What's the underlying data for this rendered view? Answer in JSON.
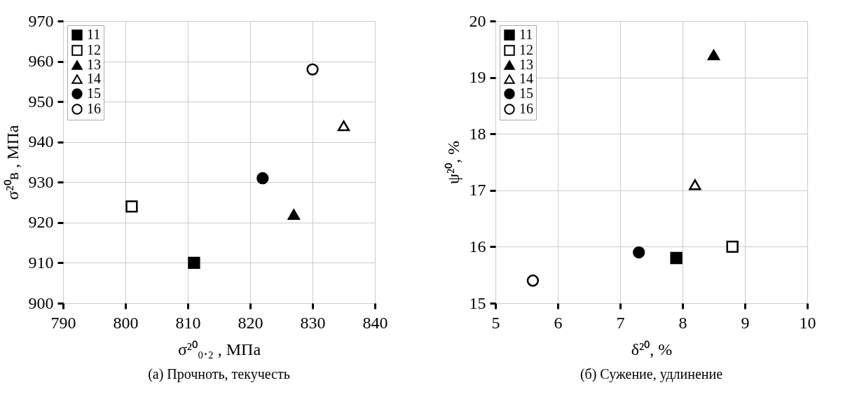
{
  "chart_data": [
    {
      "type": "scatter",
      "title": "(a) Прочноть, текучесть",
      "xlabel": "σ²⁰₀.₂ , МПа",
      "ylabel": "σ²⁰в , МПа",
      "xlim": [
        790,
        840
      ],
      "xticks": [
        790,
        800,
        810,
        820,
        830,
        840
      ],
      "ylim": [
        900,
        970
      ],
      "yticks": [
        900,
        910,
        920,
        930,
        940,
        950,
        960,
        970
      ],
      "grid": true,
      "legend": "top left",
      "series": [
        {
          "name": "11",
          "color": "#000000",
          "marker": "square",
          "x": [
            811
          ],
          "values": [
            910
          ]
        },
        {
          "name": "12",
          "color": "#000000",
          "marker": "square-open",
          "x": [
            801
          ],
          "values": [
            924
          ]
        },
        {
          "name": "13",
          "color": "#000000",
          "marker": "triangle",
          "x": [
            827
          ],
          "values": [
            922
          ]
        },
        {
          "name": "14",
          "color": "#000000",
          "marker": "triangle-open",
          "x": [
            835
          ],
          "values": [
            944
          ]
        },
        {
          "name": "15",
          "color": "#000000",
          "marker": "circle",
          "x": [
            822
          ],
          "values": [
            931
          ]
        },
        {
          "name": "16",
          "color": "#000000",
          "marker": "circle-open",
          "x": [
            830
          ],
          "values": [
            958
          ]
        }
      ]
    },
    {
      "type": "scatter",
      "title": "(б) Сужение, удлинение",
      "xlabel": "δ²⁰, %",
      "ylabel": "ψ²⁰, %",
      "xlim": [
        5,
        10
      ],
      "xticks": [
        5,
        6,
        7,
        8,
        9,
        10
      ],
      "ylim": [
        15,
        20
      ],
      "yticks": [
        15,
        16,
        17,
        18,
        19,
        20
      ],
      "grid": true,
      "legend": "top left",
      "series": [
        {
          "name": "11",
          "color": "#000000",
          "marker": "square",
          "x": [
            7.9
          ],
          "values": [
            15.8
          ]
        },
        {
          "name": "12",
          "color": "#000000",
          "marker": "square-open",
          "x": [
            8.8
          ],
          "values": [
            16.0
          ]
        },
        {
          "name": "13",
          "color": "#000000",
          "marker": "triangle",
          "x": [
            8.5
          ],
          "values": [
            19.4
          ]
        },
        {
          "name": "14",
          "color": "#000000",
          "marker": "triangle-open",
          "x": [
            8.2
          ],
          "values": [
            17.1
          ]
        },
        {
          "name": "15",
          "color": "#000000",
          "marker": "circle",
          "x": [
            7.3
          ],
          "values": [
            15.9
          ]
        },
        {
          "name": "16",
          "color": "#000000",
          "marker": "circle-open",
          "x": [
            5.6
          ],
          "values": [
            15.4
          ]
        }
      ]
    }
  ]
}
